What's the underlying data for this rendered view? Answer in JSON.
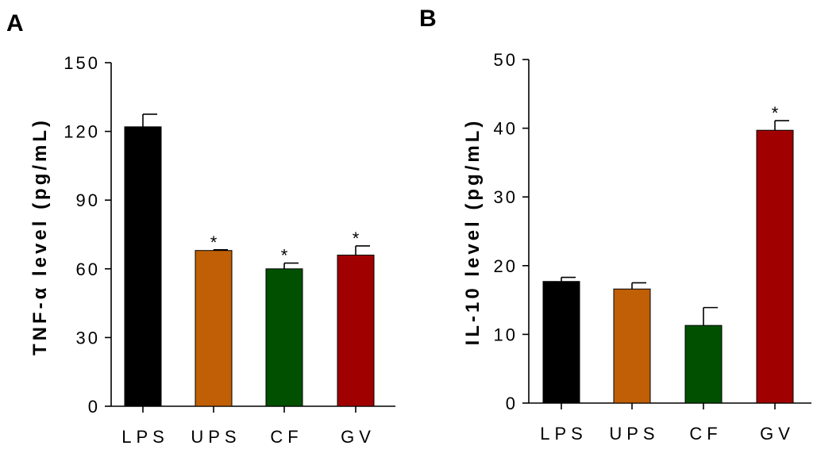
{
  "chart_data": [
    {
      "panel": "A",
      "type": "bar",
      "ylabel": "TNF-α level (pg/mL)",
      "xlabel": "",
      "ylim": [
        0,
        150
      ],
      "yticks": [
        0,
        30,
        60,
        90,
        120,
        150
      ],
      "categories": [
        "LPS",
        "UPS",
        "CF",
        "GV"
      ],
      "values": [
        122,
        68,
        60,
        66
      ],
      "errors": [
        5.5,
        0.3,
        2.5,
        4
      ],
      "significance": [
        "",
        "*",
        "*",
        "*"
      ],
      "colors": [
        "#000000",
        "#C05F05",
        "#005000",
        "#A00000"
      ]
    },
    {
      "panel": "B",
      "type": "bar",
      "ylabel": "IL-10 level (pg/mL)",
      "xlabel": "",
      "ylim": [
        0,
        50
      ],
      "yticks": [
        0,
        10,
        20,
        30,
        40,
        50
      ],
      "categories": [
        "LPS",
        "UPS",
        "CF",
        "GV"
      ],
      "values": [
        17.7,
        16.6,
        11.3,
        39.7
      ],
      "errors": [
        0.6,
        0.9,
        2.6,
        1.4
      ],
      "significance": [
        "",
        "",
        "",
        "*"
      ],
      "colors": [
        "#000000",
        "#C05F05",
        "#005000",
        "#A00000"
      ]
    }
  ]
}
